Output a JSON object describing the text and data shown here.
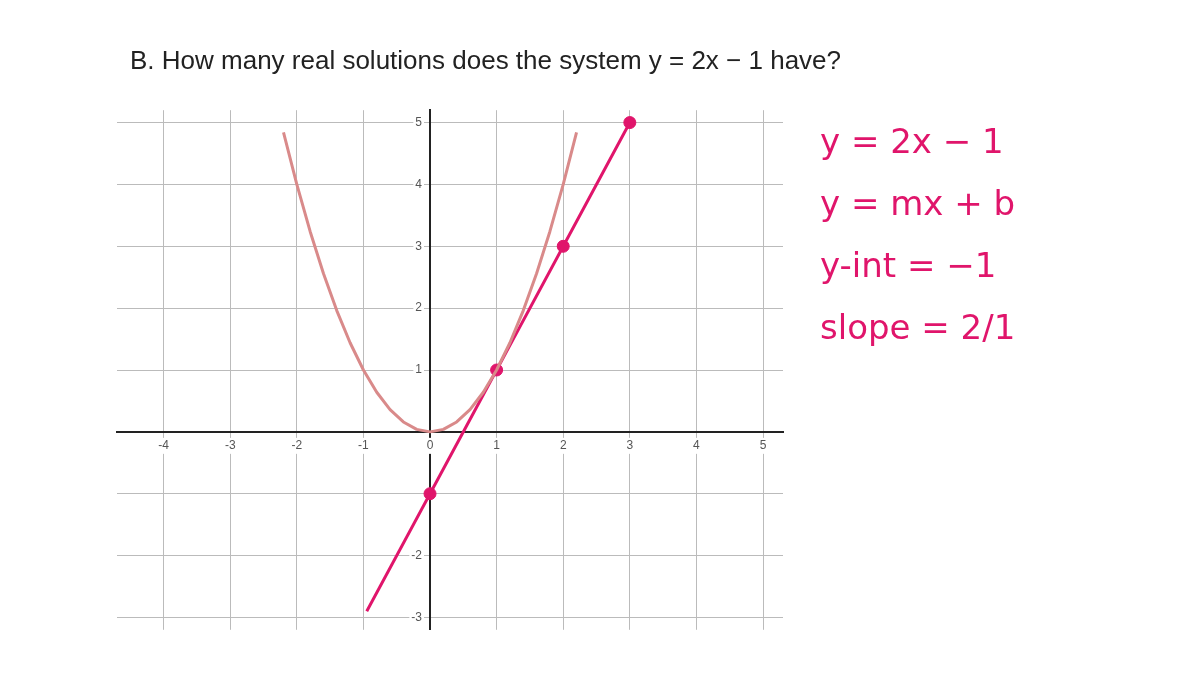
{
  "chart_data": {
    "type": "line",
    "title": "B. How many real solutions does the system y = 2x − 1 have?",
    "annotations": [
      "y = 2x − 1",
      "y = mx + b",
      "y-int = −1",
      "slope = 2/1"
    ],
    "series": [
      {
        "type": "line",
        "color": "#d98a8a",
        "x": [
          -2.2,
          -2,
          -1.8,
          -1.6,
          -1.4,
          -1.2,
          -1,
          -0.8,
          -0.6,
          -0.4,
          -0.2,
          0,
          0.2,
          0.4,
          0.6,
          0.8,
          1,
          1.2,
          1.4,
          1.6,
          1.8,
          2,
          2.2
        ],
        "values": [
          4.84,
          4,
          3.24,
          2.56,
          1.96,
          1.44,
          1,
          0.64,
          0.36,
          0.16,
          0.04,
          0,
          0.04,
          0.16,
          0.36,
          0.64,
          1,
          1.44,
          1.96,
          2.56,
          3.24,
          4,
          4.84
        ],
        "marker": "none"
      },
      {
        "type": "line",
        "color": "#e0156b",
        "x": [
          -0.95,
          0,
          1,
          2,
          3
        ],
        "values": [
          -2.9,
          -1,
          1,
          3,
          5
        ],
        "marker": "none"
      },
      {
        "type": "scatter",
        "color": "#e0156b",
        "x": [
          0,
          1,
          2,
          3
        ],
        "values": [
          -1,
          1,
          3,
          5
        ],
        "marker": "circle"
      }
    ],
    "xlim": [
      -4.7,
      5.3
    ],
    "ylim": [
      -3.2,
      5.2
    ],
    "xticks": [
      -4,
      -3,
      -2,
      -1,
      0,
      1,
      2,
      3,
      4,
      5
    ],
    "yticks": [
      -3,
      -2,
      {
        "value": -1,
        "label": null
      },
      1,
      2,
      3,
      4,
      5
    ],
    "grid": true
  }
}
